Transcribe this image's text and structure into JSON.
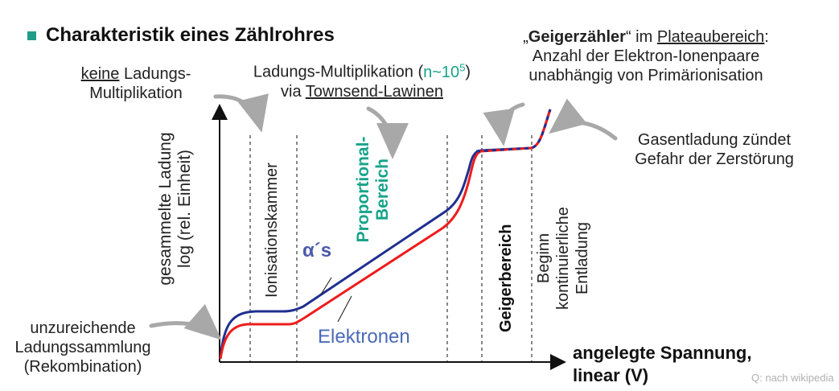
{
  "title": "Charakteristik eines Zählrohres",
  "labels": {
    "keine": "keine",
    "ladungs_rest": " Ladungs-",
    "multiplikation": "Multiplikation",
    "lm_line1_a": "Ladungs-Multiplikation (",
    "lm_n": "n~10",
    "lm_exp": "5",
    "lm_close": ")",
    "lm_via": "via ",
    "lm_townsend": "Townsend-Lawinen",
    "gz_open": "„",
    "gz_bold": "Geigerzähler",
    "gz_mid": "“ im ",
    "gz_plateau": "Plateaubereich",
    "gz_colon": ":",
    "gz_line2": "Anzahl der Elektron-Ionenpaare",
    "gz_line3": "unabhängig von Primärionisation",
    "gas_line1": "Gasentladung zündet",
    "gas_line2": "Gefahr der Zerstörung",
    "unz_line1": "unzureichende",
    "unz_line2": "Ladungssammlung",
    "unz_line3": "(Rekombination)",
    "ylabel_line1": "gesammelte Ladung",
    "ylabel_line2": "log (rel. Einheit)",
    "xlabel_line1": "angelegte Spannung,",
    "xlabel_line2": "linear (V)",
    "ionisationskammer": "Ionisationskammer",
    "proportional_line1": "Proportional-",
    "proportional_line2": "Bereich",
    "geigerbereich": "Geigerbereich",
    "beginn_line1": "Beginn",
    "beginn_line2": "kontinuierliche",
    "beginn_line3": "Entladung",
    "alpha": "α´s",
    "elektronen": "Elektronen",
    "source": "Q: nach wikipedia"
  },
  "colors": {
    "alpha_curve": "#1f2f8f",
    "electron_curve": "#ee1c1c",
    "teal": "#17a38a",
    "alpha_label": "#4a5aa8",
    "electron_label": "#4a6ab8",
    "arrow": "#a8a8a8"
  }
}
